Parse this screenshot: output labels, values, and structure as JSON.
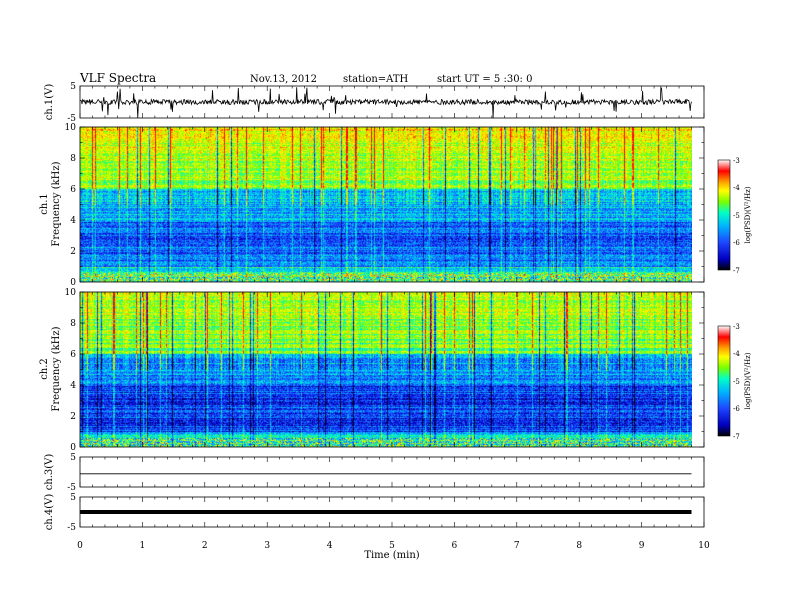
{
  "header": {
    "title": "VLF Spectra",
    "date": "Nov.13, 2012",
    "station": "station=ATH",
    "start": "start UT =  5 :30: 0"
  },
  "colors": {
    "colormap": [
      "#000000",
      "#0000c0",
      "#1e46ff",
      "#00b4ff",
      "#00ffc8",
      "#78ff00",
      "#ffff00",
      "#ffa000",
      "#ff0000",
      "#ffffff"
    ]
  },
  "chart_data": [
    {
      "type": "line",
      "panel": "ch1-waveform",
      "ylabel": "ch.1(V)",
      "ylim": [
        -5,
        5
      ],
      "yticks": [
        "5",
        "-5"
      ],
      "x_range_min": [
        0,
        9.8
      ],
      "signal": "noisy waveform around 0 V with spikes"
    },
    {
      "type": "heatmap",
      "panel": "ch1-spectrogram",
      "ylabel_channel": "ch.1",
      "ylabel": "Frequency  (kHz)",
      "ylim": [
        0,
        10
      ],
      "yticks": [
        "0",
        "2",
        "4",
        "6",
        "8",
        "10"
      ],
      "x_range_min": [
        0,
        9.8
      ],
      "colorbar": {
        "label": "log(PSD)(V²/Hz)",
        "range": [
          -7,
          -3
        ],
        "ticks": [
          "-3",
          "-4",
          "-5",
          "-6",
          "-7"
        ]
      }
    },
    {
      "type": "heatmap",
      "panel": "ch2-spectrogram",
      "ylabel_channel": "ch.2",
      "ylabel": "Frequency  (kHz)",
      "ylim": [
        0,
        10
      ],
      "yticks": [
        "0",
        "2",
        "4",
        "6",
        "8",
        "10"
      ],
      "x_range_min": [
        0,
        9.8
      ],
      "colorbar": {
        "label": "log(PSD)(V²/Hz)",
        "range": [
          -7,
          -3
        ],
        "ticks": [
          "-3",
          "-4",
          "-5",
          "-6",
          "-7"
        ]
      }
    },
    {
      "type": "line",
      "panel": "ch3-waveform",
      "ylabel": "ch.3(V)",
      "ylim": [
        -5,
        5
      ],
      "yticks": [
        "5",
        "-5"
      ],
      "x_range_min": [
        0,
        9.8
      ],
      "signal": "near-flat trace slightly below 0 V"
    },
    {
      "type": "line",
      "panel": "ch4-waveform",
      "ylabel": "ch.4(V)",
      "ylim": [
        -5,
        5
      ],
      "yticks": [
        "5",
        "-5"
      ],
      "x_range_min": [
        0,
        9.8
      ],
      "signal": "thick flat trace near 0 V"
    }
  ],
  "xaxis": {
    "label": "Time  (min)",
    "ticks": [
      "0",
      "1",
      "2",
      "3",
      "4",
      "5",
      "6",
      "7",
      "8",
      "9",
      "10"
    ],
    "range": [
      0,
      10
    ]
  }
}
